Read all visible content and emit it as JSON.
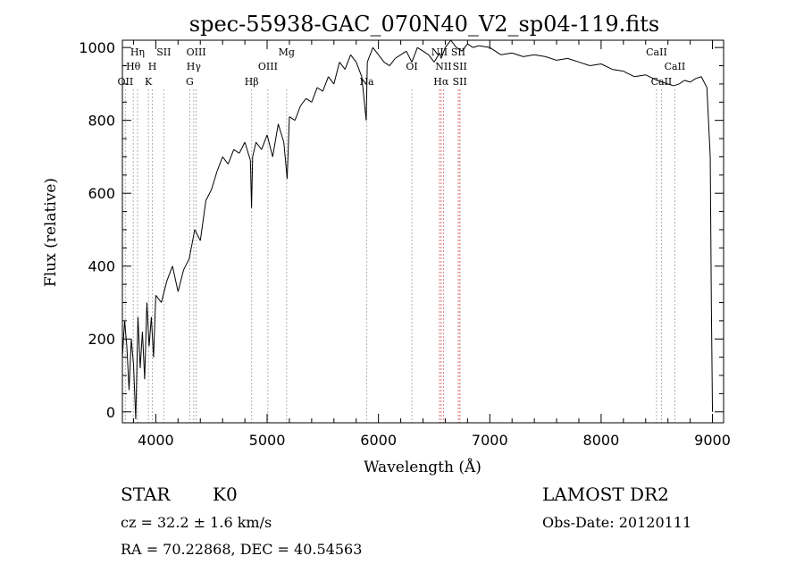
{
  "chart_data": {
    "type": "line",
    "title": "spec-55938-GAC_070N40_V2_sp04-119.fits",
    "xlabel": "Wavelength (Å)",
    "ylabel": "Flux (relative)",
    "xlim": [
      3700,
      9100
    ],
    "ylim": [
      -30,
      1020
    ],
    "xticks": [
      4000,
      5000,
      6000,
      7000,
      8000,
      9000
    ],
    "yticks": [
      0,
      200,
      400,
      600,
      800,
      1000
    ],
    "grid": false,
    "series": [
      {
        "x": [
          3700,
          3720,
          3740,
          3760,
          3780,
          3800,
          3820,
          3840,
          3860,
          3880,
          3900,
          3920,
          3940,
          3960,
          3980,
          4000,
          4050,
          4100,
          4150,
          4200,
          4250,
          4300,
          4350,
          4400,
          4450,
          4500,
          4550,
          4600,
          4650,
          4700,
          4750,
          4800,
          4850,
          4860,
          4870,
          4900,
          4950,
          5000,
          5050,
          5100,
          5150,
          5180,
          5200,
          5250,
          5300,
          5350,
          5400,
          5450,
          5500,
          5550,
          5600,
          5650,
          5700,
          5750,
          5800,
          5850,
          5890,
          5900,
          5950,
          6000,
          6050,
          6100,
          6150,
          6200,
          6250,
          6300,
          6350,
          6400,
          6450,
          6500,
          6550,
          6563,
          6600,
          6650,
          6700,
          6750,
          6800,
          6850,
          6900,
          7000,
          7100,
          7200,
          7300,
          7400,
          7500,
          7600,
          7700,
          7800,
          7900,
          8000,
          8100,
          8200,
          8300,
          8400,
          8500,
          8550,
          8600,
          8650,
          8700,
          8750,
          8800,
          8850,
          8900,
          8950,
          8980,
          8990,
          9000
        ],
        "y": [
          150,
          250,
          180,
          60,
          200,
          130,
          -20,
          260,
          120,
          220,
          90,
          300,
          180,
          260,
          150,
          320,
          300,
          360,
          400,
          330,
          390,
          420,
          500,
          470,
          580,
          610,
          660,
          700,
          680,
          720,
          710,
          740,
          690,
          560,
          700,
          740,
          720,
          760,
          700,
          790,
          740,
          640,
          810,
          800,
          840,
          860,
          850,
          890,
          880,
          920,
          900,
          960,
          940,
          980,
          960,
          920,
          800,
          960,
          1000,
          980,
          960,
          950,
          970,
          980,
          990,
          960,
          1000,
          990,
          980,
          960,
          985,
          970,
          1000,
          1020,
          1000,
          990,
          1010,
          1000,
          1005,
          1000,
          980,
          985,
          975,
          980,
          975,
          965,
          970,
          960,
          950,
          955,
          940,
          935,
          920,
          925,
          910,
          905,
          900,
          895,
          900,
          910,
          905,
          915,
          920,
          890,
          700,
          300,
          0
        ]
      }
    ],
    "spectral_lines": [
      {
        "name": "OII",
        "wavelength": 3727,
        "color": "#b0b0b0",
        "row": 3
      },
      {
        "name": "Hθ",
        "wavelength": 3798,
        "color": "#b0b0b0",
        "row": 2
      },
      {
        "name": "Hη",
        "wavelength": 3836,
        "color": "#b0b0b0",
        "row": 1
      },
      {
        "name": "K",
        "wavelength": 3934,
        "color": "#b0b0b0",
        "row": 3
      },
      {
        "name": "H",
        "wavelength": 3969,
        "color": "#b0b0b0",
        "row": 2
      },
      {
        "name": "SII",
        "wavelength": 4072,
        "color": "#b0b0b0",
        "row": 1
      },
      {
        "name": "G",
        "wavelength": 4305,
        "color": "#b0b0b0",
        "row": 3
      },
      {
        "name": "Hγ",
        "wavelength": 4341,
        "color": "#b0b0b0",
        "row": 2
      },
      {
        "name": "OIII",
        "wavelength": 4363,
        "color": "#b0b0b0",
        "row": 1
      },
      {
        "name": "Hβ",
        "wavelength": 4861,
        "color": "#b0b0b0",
        "row": 3
      },
      {
        "name": "OIII",
        "wavelength": 5007,
        "color": "#b0b0b0",
        "row": 2
      },
      {
        "name": "Mg",
        "wavelength": 5175,
        "color": "#b0b0b0",
        "row": 1
      },
      {
        "name": "Na",
        "wavelength": 5894,
        "color": "#b0b0b0",
        "row": 3
      },
      {
        "name": "OI",
        "wavelength": 6300,
        "color": "#b0b0b0",
        "row": 2
      },
      {
        "name": "NII",
        "wavelength": 6548,
        "color": "#e08080",
        "row": 1
      },
      {
        "name": "NII",
        "wavelength": 6584,
        "color": "#e08080",
        "row": 2
      },
      {
        "name": "Hα",
        "wavelength": 6563,
        "color": "#e08080",
        "row": 3
      },
      {
        "name": "SII",
        "wavelength": 6717,
        "color": "#e08080",
        "row": 1
      },
      {
        "name": "SII",
        "wavelength": 6731,
        "color": "#e08080",
        "row": 2
      },
      {
        "name": "SII",
        "wavelength": 6731,
        "color": "#e08080",
        "row": 3
      },
      {
        "name": "CaII",
        "wavelength": 8498,
        "color": "#b0b0b0",
        "row": 1
      },
      {
        "name": "CaII",
        "wavelength": 8542,
        "color": "#b0b0b0",
        "row": 3
      },
      {
        "name": "CaII",
        "wavelength": 8662,
        "color": "#b0b0b0",
        "row": 2
      }
    ]
  },
  "info": {
    "object_class": "STAR",
    "subclass": "K0",
    "survey": "LAMOST DR2",
    "velocity": "cz = 32.2 ± 1.6 km/s",
    "obs_date": "Obs-Date: 20120111",
    "coords": "RA =  70.22868, DEC =  40.54563"
  }
}
